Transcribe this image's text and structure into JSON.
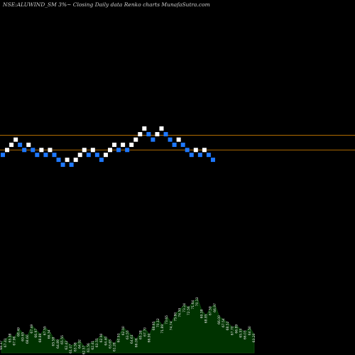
{
  "chart_data": {
    "type": "renko",
    "title": "NSE:ALUWIND_SM 3%~  Closing Daily data  Renko  charts MunafaSutra.com",
    "colors": {
      "up": "#ffffff",
      "down": "#1e78ff",
      "resistance_line": "#b06a00",
      "support_line": "#b06a00",
      "volume_fill": "#003300",
      "volume_stroke": "#0e4d0e",
      "background": "#000000"
    },
    "horizontal_levels": [
      72.1,
      66.4
    ],
    "bricks": [
      {
        "close": 64.5,
        "dir": "down"
      },
      {
        "close": 66.4,
        "dir": "up"
      },
      {
        "close": 68.4,
        "dir": "up"
      },
      {
        "close": 70.4,
        "dir": "up"
      },
      {
        "close": 68.4,
        "dir": "down"
      },
      {
        "close": 66.4,
        "dir": "down"
      },
      {
        "close": 68.4,
        "dir": "up"
      },
      {
        "close": 66.4,
        "dir": "down"
      },
      {
        "close": 64.5,
        "dir": "down"
      },
      {
        "close": 66.4,
        "dir": "up"
      },
      {
        "close": 64.5,
        "dir": "down"
      },
      {
        "close": 66.4,
        "dir": "up"
      },
      {
        "close": 64.5,
        "dir": "down"
      },
      {
        "close": 62.6,
        "dir": "down"
      },
      {
        "close": 60.7,
        "dir": "down"
      },
      {
        "close": 62.6,
        "dir": "up"
      },
      {
        "close": 60.7,
        "dir": "down"
      },
      {
        "close": 62.6,
        "dir": "up"
      },
      {
        "close": 64.5,
        "dir": "up"
      },
      {
        "close": 66.4,
        "dir": "up"
      },
      {
        "close": 64.5,
        "dir": "down"
      },
      {
        "close": 66.4,
        "dir": "up"
      },
      {
        "close": 64.5,
        "dir": "down"
      },
      {
        "close": 62.6,
        "dir": "down"
      },
      {
        "close": 64.5,
        "dir": "up"
      },
      {
        "close": 66.4,
        "dir": "up"
      },
      {
        "close": 68.4,
        "dir": "up"
      },
      {
        "close": 66.4,
        "dir": "down"
      },
      {
        "close": 68.4,
        "dir": "up"
      },
      {
        "close": 66.4,
        "dir": "down"
      },
      {
        "close": 68.4,
        "dir": "up"
      },
      {
        "close": 70.4,
        "dir": "up"
      },
      {
        "close": 72.5,
        "dir": "up"
      },
      {
        "close": 74.7,
        "dir": "up"
      },
      {
        "close": 72.5,
        "dir": "down"
      },
      {
        "close": 70.4,
        "dir": "down"
      },
      {
        "close": 72.5,
        "dir": "up"
      },
      {
        "close": 74.7,
        "dir": "up"
      },
      {
        "close": 72.5,
        "dir": "down"
      },
      {
        "close": 70.4,
        "dir": "down"
      },
      {
        "close": 68.4,
        "dir": "down"
      },
      {
        "close": 70.4,
        "dir": "up"
      },
      {
        "close": 68.4,
        "dir": "down"
      },
      {
        "close": 66.4,
        "dir": "down"
      },
      {
        "close": 64.5,
        "dir": "down"
      },
      {
        "close": 66.4,
        "dir": "up"
      },
      {
        "close": 64.5,
        "dir": "down"
      },
      {
        "close": 66.4,
        "dir": "up"
      },
      {
        "close": 64.5,
        "dir": "down"
      },
      {
        "close": 62.6,
        "dir": "down"
      }
    ],
    "volume_labels": [
      "68.37",
      "67.41",
      "65.98",
      "67.96",
      "68.49",
      "69.65",
      "68.60",
      "67.49",
      "66.97",
      "68.89",
      "67.55",
      "66.34",
      "65.58",
      "64.89",
      "65.55",
      "62.42",
      "61.07",
      "63.58",
      "64.92",
      "62.57",
      "61.56",
      "62.41",
      "63.55",
      "62.90",
      "64.40",
      "63.65",
      "61.28",
      "60.93",
      "62.00",
      "63.55",
      "64.61",
      "66.06",
      "65.28",
      "67.70",
      "66.90",
      "68.65",
      "70.12",
      "71.89",
      "73.65",
      "74.74",
      "75.80",
      "74.59",
      "73.24",
      "72.56",
      "71.64",
      "70.13",
      "69.38",
      "68.85",
      "67.59",
      "66.97",
      "66.00",
      "67.54",
      "68.52",
      "67.70",
      "66.89",
      "65.55",
      "66.03",
      "64.50",
      "63.20"
    ],
    "volume_values": [
      0.18,
      0.22,
      0.3,
      0.25,
      0.4,
      0.32,
      0.28,
      0.45,
      0.38,
      0.3,
      0.42,
      0.36,
      0.24,
      0.2,
      0.27,
      0.18,
      0.12,
      0.15,
      0.2,
      0.1,
      0.14,
      0.18,
      0.22,
      0.3,
      0.25,
      0.2,
      0.15,
      0.3,
      0.42,
      0.35,
      0.28,
      0.22,
      0.35,
      0.4,
      0.3,
      0.5,
      0.55,
      0.45,
      0.6,
      0.5,
      0.65,
      0.72,
      0.8,
      0.75,
      0.85,
      0.9,
      0.7,
      0.62,
      0.75,
      0.8,
      0.6,
      0.55,
      0.5,
      0.42,
      0.45,
      0.38,
      0.35,
      0.42,
      0.3
    ]
  }
}
